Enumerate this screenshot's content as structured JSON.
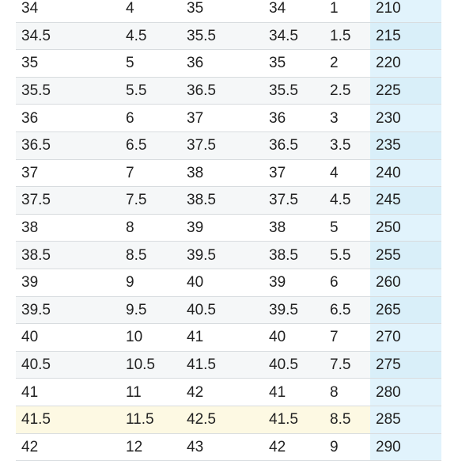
{
  "size_table": {
    "highlighted_row_index": 15,
    "rows": [
      [
        "34",
        "4",
        "35",
        "34",
        "1",
        "210"
      ],
      [
        "34.5",
        "4.5",
        "35.5",
        "34.5",
        "1.5",
        "215"
      ],
      [
        "35",
        "5",
        "36",
        "35",
        "2",
        "220"
      ],
      [
        "35.5",
        "5.5",
        "36.5",
        "35.5",
        "2.5",
        "225"
      ],
      [
        "36",
        "6",
        "37",
        "36",
        "3",
        "230"
      ],
      [
        "36.5",
        "6.5",
        "37.5",
        "36.5",
        "3.5",
        "235"
      ],
      [
        "37",
        "7",
        "38",
        "37",
        "4",
        "240"
      ],
      [
        "37.5",
        "7.5",
        "38.5",
        "37.5",
        "4.5",
        "245"
      ],
      [
        "38",
        "8",
        "39",
        "38",
        "5",
        "250"
      ],
      [
        "38.5",
        "8.5",
        "39.5",
        "38.5",
        "5.5",
        "255"
      ],
      [
        "39",
        "9",
        "40",
        "39",
        "6",
        "260"
      ],
      [
        "39.5",
        "9.5",
        "40.5",
        "39.5",
        "6.5",
        "265"
      ],
      [
        "40",
        "10",
        "41",
        "40",
        "7",
        "270"
      ],
      [
        "40.5",
        "10.5",
        "41.5",
        "40.5",
        "7.5",
        "275"
      ],
      [
        "41",
        "11",
        "42",
        "41",
        "8",
        "280"
      ],
      [
        "41.5",
        "11.5",
        "42.5",
        "41.5",
        "8.5",
        "285"
      ],
      [
        "42",
        "12",
        "43",
        "42",
        "9",
        "290"
      ]
    ]
  },
  "colors": {
    "highlight_row": "#fdf9e3",
    "last_column": "#e1f3fc",
    "zebra_row": "#f5f7f8",
    "divider": "#d8dcdf"
  }
}
